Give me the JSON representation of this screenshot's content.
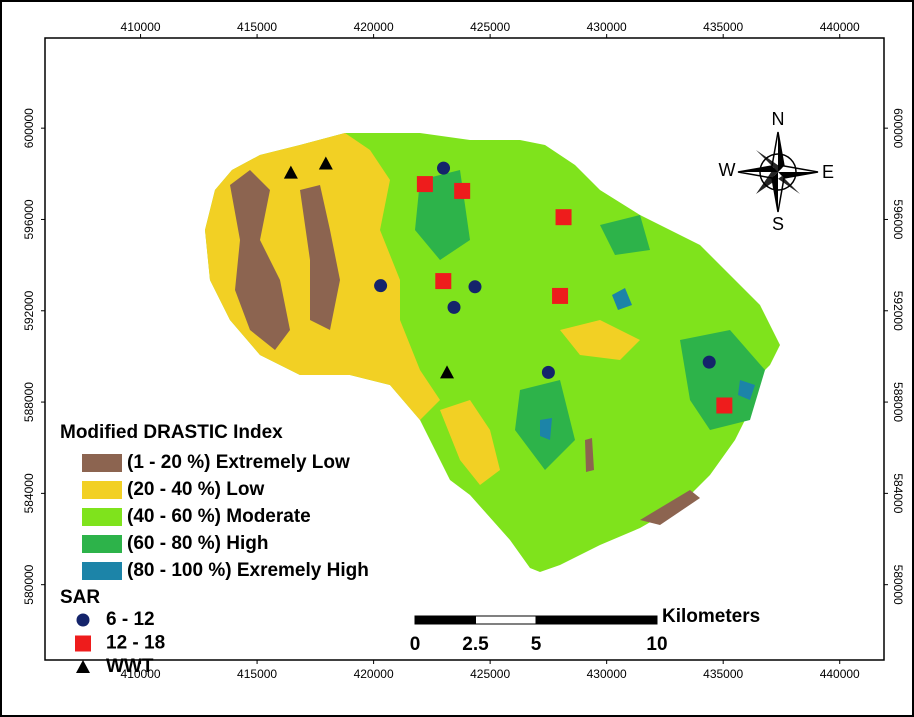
{
  "map": {
    "xlim": [
      405900,
      441900
    ],
    "ylim": [
      576700,
      603950
    ],
    "x_axis": {
      "ticks": [
        410000,
        415000,
        420000,
        425000,
        430000,
        435000,
        440000
      ]
    },
    "y_axis": {
      "ticks": [
        600000,
        596000,
        592000,
        588000,
        584000,
        580000
      ]
    },
    "compass": {
      "north": "N",
      "south": "S",
      "east": "E",
      "west": "W"
    },
    "zones": {
      "title": "Modified DRASTIC Index",
      "classes": [
        {
          "label": "(1 - 20 %) Extremely Low",
          "color": "#8c6450"
        },
        {
          "label": "(20 - 40 %) Low",
          "color": "#f2d024"
        },
        {
          "label": "(40 - 60 %) Moderate",
          "color": "#7fe31c"
        },
        {
          "label": "(60 - 80 %) High",
          "color": "#2db34a"
        },
        {
          "label": "(80 - 100 %) Exremely High",
          "color": "#1c84a8"
        }
      ]
    },
    "sar": {
      "title": "SAR",
      "classes": [
        {
          "label": "6 - 12",
          "color": "#14246b",
          "shape": "circle",
          "points": [
            {
              "x": 423000,
              "y": 598250
            },
            {
              "x": 420300,
              "y": 593100
            },
            {
              "x": 424350,
              "y": 593050
            },
            {
              "x": 423450,
              "y": 592150
            },
            {
              "x": 427500,
              "y": 589300
            },
            {
              "x": 434400,
              "y": 589750
            }
          ]
        },
        {
          "label": "12 - 18",
          "color": "#ee1c1c",
          "shape": "square",
          "points": [
            {
              "x": 422200,
              "y": 597550
            },
            {
              "x": 423800,
              "y": 597250
            },
            {
              "x": 428150,
              "y": 596100
            },
            {
              "x": 422990,
              "y": 593300
            },
            {
              "x": 428000,
              "y": 592650
            },
            {
              "x": 435050,
              "y": 587850
            }
          ]
        },
        {
          "label": "WWT",
          "color": "#000000",
          "shape": "triangle",
          "points": [
            {
              "x": 416450,
              "y": 598050
            },
            {
              "x": 417950,
              "y": 598450
            },
            {
              "x": 423150,
              "y": 589300
            }
          ]
        }
      ]
    },
    "scale_bar": {
      "unit": "Kilometers",
      "ticks": [
        0,
        2.5,
        5,
        10
      ]
    }
  }
}
